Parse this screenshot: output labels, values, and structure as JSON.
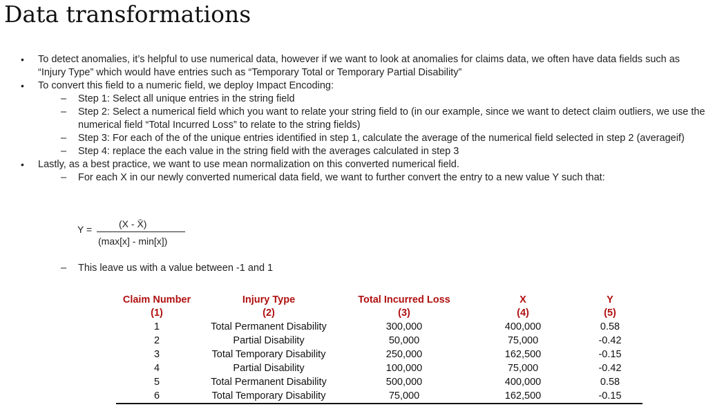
{
  "title": "Data transformations",
  "bullets": [
    {
      "text": "To detect anomalies, it’s helpful to use numerical data, however if we want to look at anomalies for claims data, we often have data fields such as “Injury Type” which would have entries such as “Temporary Total or Temporary Partial Disability”",
      "subs": []
    },
    {
      "text": "To convert this field to a numeric field, we deploy Impact Encoding:",
      "subs": [
        "Step 1: Select all unique entries in the string field",
        "Step 2: Select a numerical field which you want to relate your string field to (in our example, since we want to detect claim outliers, we use the numerical field “Total Incurred Loss” to relate to the string fields)",
        "Step 3: For each of the of the unique entries identified in step 1, calculate the average of the numerical field selected in step 2 (averageif)",
        "Step 4: replace the each value in the string field with the averages calculated in step 3"
      ]
    },
    {
      "text": "Lastly, as a best practice, we want to use mean normalization on this converted numerical field.",
      "subs": [
        "For each X in our newly converted numerical data field, we want to further convert the entry to a new value Y such that:"
      ]
    }
  ],
  "formula": {
    "lhs": "Y =",
    "numerator": "(X -  X̄)",
    "denominator": "(max[x] - min[x])"
  },
  "after_formula": "This leave us with a value between -1 and 1",
  "table": {
    "headers": [
      [
        "Claim Number",
        "(1)"
      ],
      [
        "Injury Type",
        "(2)"
      ],
      [
        "Total Incurred Loss",
        "(3)"
      ],
      [
        "X",
        "(4)"
      ],
      [
        "Y",
        "(5)"
      ]
    ],
    "rows": [
      [
        "1",
        "Total Permanent Disability",
        "300,000",
        "400,000",
        "0.58"
      ],
      [
        "2",
        "Partial Disability",
        "50,000",
        "75,000",
        "-0.42"
      ],
      [
        "3",
        "Total Temporary Disability",
        "250,000",
        "162,500",
        "-0.15"
      ],
      [
        "4",
        "Partial Disability",
        "100,000",
        "75,000",
        "-0.42"
      ],
      [
        "5",
        "Total Permanent Disability",
        "500,000",
        "400,000",
        "0.58"
      ],
      [
        "6",
        "Total Temporary Disability",
        "75,000",
        "162,500",
        "-0.15"
      ]
    ]
  }
}
